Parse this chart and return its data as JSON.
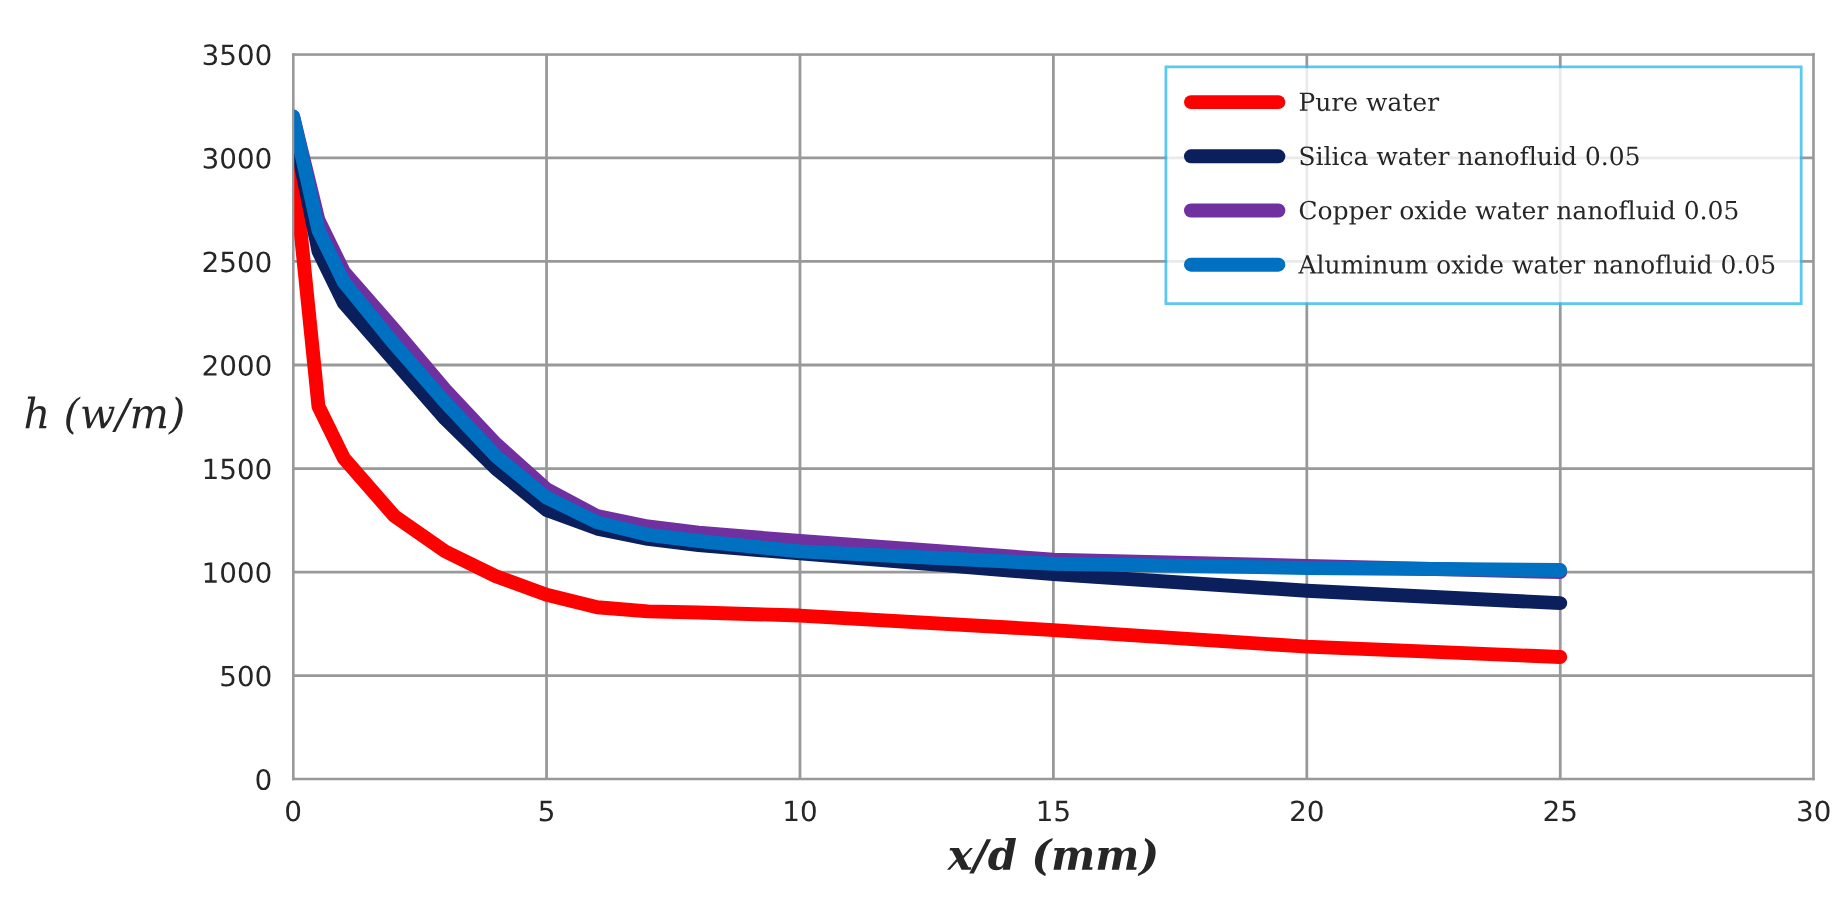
{
  "chart_data": {
    "type": "line",
    "xlabel": "x/d (mm)",
    "ylabel": "h (w/m)",
    "xlim": [
      0,
      30
    ],
    "xticks": [
      0,
      5,
      10,
      15,
      20,
      25,
      30
    ],
    "ylim": [
      0,
      3500
    ],
    "yticks": [
      0,
      500,
      1000,
      1500,
      2000,
      2500,
      3000,
      3500
    ],
    "grid": true,
    "legend": "top right",
    "line_style": "solid",
    "x": [
      0,
      0.5,
      1,
      2,
      3,
      4,
      5,
      6,
      7,
      8,
      10,
      15,
      20,
      25
    ],
    "series": [
      {
        "name": "Pure water",
        "color": "#ff0000",
        "values": [
          3000,
          1800,
          1550,
          1270,
          1100,
          980,
          890,
          830,
          810,
          805,
          790,
          720,
          640,
          590
        ]
      },
      {
        "name": "Silica water nanofluid 0.05",
        "color": "#0a1f5c",
        "values": [
          3150,
          2550,
          2300,
          2020,
          1740,
          1500,
          1300,
          1210,
          1160,
          1130,
          1090,
          990,
          910,
          850
        ]
      },
      {
        "name": "Copper oxide water nanofluid 0.05",
        "color": "#7030a0",
        "values": [
          3200,
          2700,
          2450,
          2170,
          1880,
          1620,
          1400,
          1270,
          1220,
          1190,
          1150,
          1060,
          1030,
          1000
        ]
      },
      {
        "name": "Aluminum oxide water nanofluid 0.05",
        "color": "#0070c0",
        "values": [
          3200,
          2650,
          2400,
          2100,
          1820,
          1560,
          1360,
          1240,
          1180,
          1150,
          1100,
          1040,
          1020,
          1010
        ]
      }
    ]
  }
}
